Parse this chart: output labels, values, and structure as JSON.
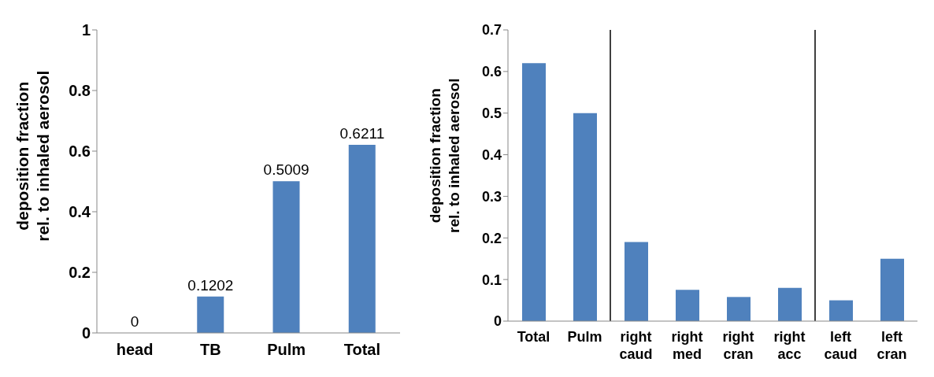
{
  "chart_data": [
    {
      "type": "bar",
      "ylabel": "deposition fraction\nrel.  to inhaled aerosol",
      "categories": [
        "head",
        "TB",
        "Pulm",
        "Total"
      ],
      "values": [
        0,
        0.1202,
        0.5009,
        0.6211
      ],
      "color": "#4f81bd",
      "ylim": [
        0,
        1
      ],
      "yticks": [
        0,
        0.2,
        0.4,
        0.6,
        0.8,
        1
      ],
      "data_labels": true
    },
    {
      "type": "bar",
      "ylabel": "deposition fraction\nrel.  to inhaled aerosol",
      "categories": [
        "Total",
        "Pulm",
        "right\ncaud",
        "right\nmed",
        "right\ncran",
        "right\nacc",
        "left\ncaud",
        "left\ncran"
      ],
      "values": [
        0.62,
        0.5,
        0.19,
        0.075,
        0.058,
        0.08,
        0.05,
        0.15
      ],
      "color": "#4f81bd",
      "ylim": [
        0,
        0.7
      ],
      "yticks": [
        0,
        0.1,
        0.2,
        0.3,
        0.4,
        0.5,
        0.6,
        0.7
      ]
    }
  ]
}
